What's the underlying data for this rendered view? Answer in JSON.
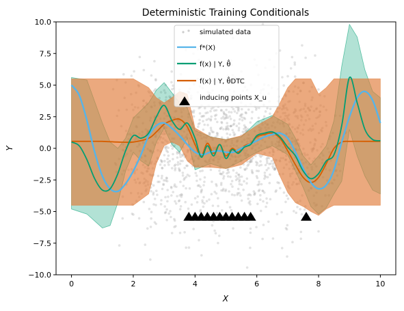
{
  "chart_data": {
    "type": "line",
    "title": "Deterministic Training Conditionals",
    "xlabel": "X",
    "ylabel": "Y",
    "xlim": [
      -0.5,
      10.5
    ],
    "ylim": [
      -10,
      10
    ],
    "x_ticks": [
      "0",
      "2",
      "4",
      "6",
      "8",
      "10"
    ],
    "y_ticks": [
      "−10.0",
      "−7.5",
      "−5.0",
      "−2.5",
      "0.0",
      "2.5",
      "5.0",
      "7.5",
      "10.0"
    ],
    "legend": {
      "location": "upper center",
      "entries": [
        {
          "label": "simulated data",
          "kind": "scatter"
        },
        {
          "label": "f*(X)",
          "kind": "line",
          "color": "#56b4e9"
        },
        {
          "label": "f(x) | Y, θ̂",
          "kind": "line",
          "color": "#009e73"
        },
        {
          "label": "f(x) | Y, θ̂DTC",
          "kind": "line",
          "color": "#d55e00"
        },
        {
          "label": "inducing points X_u",
          "kind": "marker",
          "color": "#000000"
        }
      ]
    },
    "series": [
      {
        "name": "f*(X)",
        "color": "#56b4e9",
        "x": [
          0,
          0.25,
          0.5,
          0.75,
          1.0,
          1.25,
          1.5,
          1.75,
          2.0,
          2.25,
          2.5,
          2.75,
          3.0,
          3.25,
          3.5,
          3.75,
          4.0,
          4.25,
          4.5,
          4.75,
          5.0,
          5.25,
          5.5,
          5.75,
          6.0,
          6.25,
          6.5,
          6.75,
          7.0,
          7.25,
          7.5,
          7.75,
          8.0,
          8.25,
          8.5,
          8.75,
          9.0,
          9.25,
          9.5,
          9.75,
          10.0
        ],
        "y": [
          5.0,
          4.2,
          2.2,
          -0.3,
          -2.2,
          -3.2,
          -3.4,
          -2.8,
          -1.8,
          -0.5,
          1.0,
          1.8,
          2.0,
          1.6,
          1.0,
          0.3,
          -0.3,
          -0.5,
          -0.3,
          -0.2,
          -0.3,
          -0.3,
          0.0,
          0.3,
          0.6,
          0.9,
          1.1,
          1.2,
          0.8,
          -0.3,
          -1.6,
          -2.7,
          -3.2,
          -2.9,
          -1.7,
          0.5,
          2.5,
          4.0,
          4.5,
          3.8,
          2.0
        ]
      },
      {
        "name": "f(x) | Y, θ̂",
        "color": "#009e73",
        "x": [
          0,
          0.25,
          0.5,
          0.75,
          1.0,
          1.25,
          1.5,
          1.75,
          2.0,
          2.25,
          2.5,
          2.75,
          3.0,
          3.25,
          3.5,
          3.75,
          4.0,
          4.2,
          4.4,
          4.6,
          4.8,
          5.0,
          5.2,
          5.4,
          5.6,
          5.8,
          6.0,
          6.25,
          6.5,
          6.75,
          7.0,
          7.25,
          7.5,
          7.75,
          8.0,
          8.25,
          8.5,
          8.75,
          9.0,
          9.25,
          9.5,
          9.75,
          10.0
        ],
        "y": [
          0.5,
          0.2,
          -0.9,
          -2.4,
          -3.3,
          -3.2,
          -2.0,
          -0.2,
          1.0,
          0.8,
          1.2,
          2.5,
          3.4,
          2.2,
          1.5,
          2.0,
          0.8,
          -0.7,
          0.2,
          -0.6,
          0.3,
          -0.8,
          -0.1,
          -0.4,
          0.1,
          0.3,
          1.0,
          1.2,
          1.3,
          0.9,
          0.1,
          -0.6,
          -1.8,
          -2.4,
          -2.0,
          -1.0,
          -0.5,
          1.8,
          5.6,
          3.6,
          1.5,
          0.7,
          0.6
        ]
      },
      {
        "name": "f(x) | Y, θ̂DTC",
        "color": "#d55e00",
        "x": [
          0,
          0.5,
          1.0,
          1.5,
          2.0,
          2.5,
          2.75,
          3.0,
          3.25,
          3.5,
          3.75,
          4.0,
          4.2,
          4.4,
          4.6,
          4.8,
          5.0,
          5.2,
          5.4,
          5.6,
          5.8,
          6.0,
          6.25,
          6.5,
          6.75,
          7.0,
          7.25,
          7.5,
          7.75,
          8.0,
          8.25,
          8.5,
          8.75,
          9.0,
          9.5,
          10.0
        ],
        "y": [
          0.55,
          0.55,
          0.55,
          0.5,
          0.5,
          0.8,
          1.3,
          1.9,
          2.2,
          2.3,
          1.7,
          0.3,
          -0.6,
          0.4,
          -0.4,
          0.3,
          -0.6,
          0.0,
          -0.3,
          0.2,
          0.4,
          0.9,
          1.1,
          1.2,
          0.8,
          -0.2,
          -1.3,
          -2.3,
          -2.7,
          -2.3,
          -1.2,
          0.0,
          0.5,
          0.55,
          0.55,
          0.55
        ]
      }
    ],
    "bands": [
      {
        "name": "f(x) | Y, θ̂ interval",
        "color": "#009e73",
        "opacity": 0.3,
        "x": [
          0,
          0.5,
          1.0,
          1.25,
          1.5,
          1.75,
          2.0,
          2.25,
          2.5,
          2.75,
          3.0,
          3.25,
          3.5,
          3.75,
          4.0,
          4.5,
          5.0,
          5.5,
          6.0,
          6.5,
          7.0,
          7.25,
          7.5,
          7.75,
          8.0,
          8.25,
          8.5,
          8.75,
          9.0,
          9.25,
          9.5,
          9.75,
          10.0
        ],
        "upper": [
          5.6,
          5.4,
          2.0,
          0.5,
          0.0,
          0.8,
          2.4,
          3.0,
          3.6,
          4.6,
          5.2,
          4.4,
          3.6,
          3.2,
          1.4,
          0.9,
          0.7,
          0.9,
          2.1,
          2.6,
          1.9,
          0.8,
          -0.6,
          -1.3,
          -0.6,
          0.2,
          2.2,
          6.5,
          9.8,
          8.8,
          6.2,
          4.5,
          4.0
        ],
        "lower": [
          -4.8,
          -5.2,
          -6.3,
          -6.1,
          -4.3,
          -1.8,
          -0.3,
          -1.0,
          -1.4,
          0.5,
          1.6,
          0.3,
          -0.3,
          0.8,
          -1.7,
          -1.2,
          -1.6,
          -1.0,
          -0.3,
          0.2,
          -0.5,
          -1.8,
          -3.1,
          -4.6,
          -5.2,
          -4.7,
          -3.6,
          -2.6,
          1.5,
          -0.6,
          -2.2,
          -3.3,
          -3.6
        ]
      },
      {
        "name": "f(x) | Y, θ̂DTC interval",
        "color": "#e07b39",
        "opacity": 0.65,
        "x": [
          0,
          1.0,
          2.0,
          2.5,
          2.75,
          3.0,
          3.25,
          3.5,
          3.75,
          4.0,
          4.5,
          5.0,
          5.5,
          6.0,
          6.5,
          6.75,
          7.0,
          7.25,
          7.5,
          7.75,
          8.0,
          8.25,
          8.5,
          9.0,
          10.0
        ],
        "upper": [
          5.5,
          5.5,
          5.5,
          4.8,
          4.0,
          3.6,
          4.0,
          4.5,
          4.3,
          1.6,
          0.9,
          0.7,
          1.0,
          1.8,
          2.5,
          3.6,
          4.8,
          5.5,
          5.5,
          5.5,
          4.3,
          4.8,
          5.5,
          5.5,
          5.5
        ],
        "lower": [
          -4.5,
          -4.5,
          -4.5,
          -3.6,
          -1.2,
          0.2,
          0.5,
          0.2,
          -1.0,
          -1.5,
          -1.5,
          -1.6,
          -1.3,
          -0.4,
          -0.7,
          -2.2,
          -3.5,
          -4.3,
          -4.6,
          -5.0,
          -5.3,
          -4.8,
          -4.5,
          -4.5,
          -4.5
        ]
      }
    ],
    "inducing_points": {
      "x": [
        3.8,
        4.0,
        4.2,
        4.4,
        4.6,
        4.8,
        5.0,
        5.2,
        5.4,
        5.6,
        5.8,
        7.6
      ],
      "y": [
        -5.4,
        -5.4,
        -5.4,
        -5.4,
        -5.4,
        -5.4,
        -5.4,
        -5.4,
        -5.4,
        -5.4,
        -5.4,
        -5.4
      ]
    },
    "scatter": {
      "x_range": [
        1.0,
        9.0
      ],
      "y_sd": 3.0,
      "color": "#9a9a9a",
      "count": 1400
    }
  }
}
